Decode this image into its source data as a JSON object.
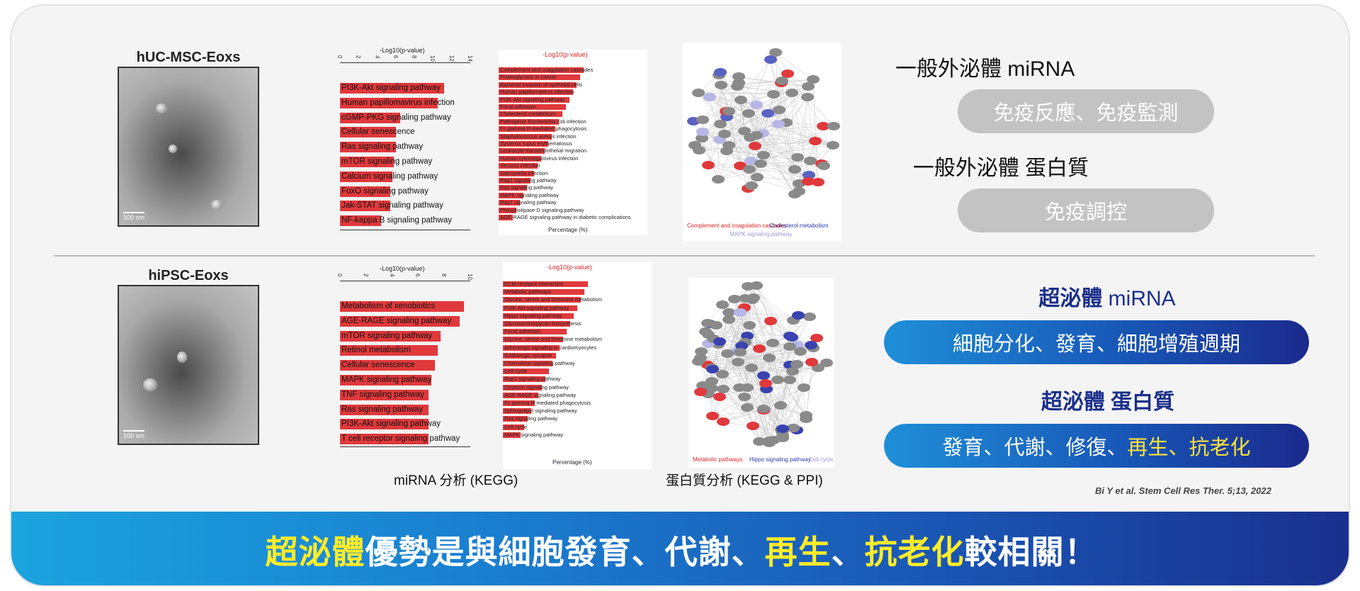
{
  "top_row": {
    "em_label": "hUC-MSC-Eoxs",
    "scale_label": "100 nm",
    "kegg_axis_title": "-Log10(p-value)",
    "kegg_ticks": [
      "0",
      "2",
      "4",
      "6",
      "8",
      "10",
      "12",
      "14"
    ],
    "kegg_pathways": [
      {
        "label": "PI3K-Akt signaling pathway",
        "value": 11.2
      },
      {
        "label": "Human papillomavirus infection",
        "value": 10.5
      },
      {
        "label": "cGMP-PKG signaling pathway",
        "value": 6.5
      },
      {
        "label": "Cellular senescence",
        "value": 6.0
      },
      {
        "label": "Ras signaling pathway",
        "value": 6.0
      },
      {
        "label": "mTOR signaling pathway",
        "value": 5.8
      },
      {
        "label": "Calcium signaling pathway",
        "value": 5.6
      },
      {
        "label": "FoxO signaling pathway",
        "value": 5.4
      },
      {
        "label": "Jak-STAT signaling pathway",
        "value": 5.4
      },
      {
        "label": "NF-kappa B signaling pathway",
        "value": 4.4
      }
    ],
    "protein_axis_title": "-Log10(p-value)",
    "protein_xlabel": "Percentage (%)",
    "protein_pathways": [
      "Complement and coagulation cascades",
      "Proteoglycans in cancer",
      "Bacterial invasion of epithelial cells",
      "Human papillomavirus infection",
      "PI3K-Akt signaling pathway",
      "Focal adhesion",
      "Cholesterol metabolism",
      "Pathogenic Escherichia coli infection",
      "Fc gamma R-mediated phagocytosis",
      "Staphylococcus aureus infection",
      "Systemic lupus erythematosus",
      "Leukocyte transendothelial migration",
      "Human cytomegalovirus infection",
      "Yersinia infection",
      "Salmonella infection",
      "Rap1 signaling pathway",
      "Ras signaling pathway",
      "MAPK signaling pathway",
      "Rap1 signaling pathway",
      "Phospholipase D signaling pathway",
      "AGE-RAGE signaling pathway in diabetic complications"
    ],
    "network_legend": [
      "Complement and coagulation cascades",
      "Cholesterol metabolism",
      "MAPK signaling pathway"
    ],
    "mirna_title": "一般外泌體 miRNA",
    "mirna_pill": "免疫反應、免疫監測",
    "protein_title": "一般外泌體 蛋白質",
    "protein_pill": "免疫調控"
  },
  "bottom_row": {
    "em_label": "hiPSC-Eoxs",
    "scale_label": "100 nm",
    "kegg_axis_title": "-Log10(p-value)",
    "kegg_ticks": [
      "0",
      "2",
      "4",
      "6",
      "8",
      "10"
    ],
    "kegg_pathways": [
      {
        "label": "Metabolism of xenobiotics",
        "value": 9.5
      },
      {
        "label": "AGE-RAGE signaling pathway",
        "value": 9.2
      },
      {
        "label": "mTOR signaling pathway",
        "value": 7.7
      },
      {
        "label": "Retinol metabolism",
        "value": 7.5
      },
      {
        "label": "Cellular senescence",
        "value": 7.3
      },
      {
        "label": "MAPK signaling pathway",
        "value": 7.0
      },
      {
        "label": "TNF signaling pathway",
        "value": 6.8
      },
      {
        "label": "Ras signaling pathway",
        "value": 6.8
      },
      {
        "label": "PI3K-Akt signaling pathway",
        "value": 6.8
      },
      {
        "label": "T cell receptor signaling pathway",
        "value": 6.8
      }
    ],
    "protein_axis_title": "-Log10(p-value)",
    "protein_xlabel": "Percentage (%)",
    "protein_pathways": [
      "ECM-receptor interaction",
      "Metabolic pathways",
      "Glycine, serine and threonine metabolism",
      "PI3K-Akt signaling pathway",
      "Hippo signaling pathway",
      "Glycosaminoglycan biosynthesis",
      "Focal adhesion",
      "Glycine, serine and threonine metabolism",
      "Adrenergic signaling in cardiomyocytes",
      "GABAergic synapse",
      "Chemokine signaling pathway",
      "Cell cycle",
      "Rap1 signaling pathway",
      "Oxytocin signaling pathway",
      "AGE-RAGE signaling pathway",
      "Fc gamma R-mediated phagocytosis",
      "Sphingolipid signaling pathway",
      "Ras signaling pathway",
      "Cell cycle",
      "MAPK signaling pathway"
    ],
    "network_legend": [
      "Metabolic pathways",
      "Hippo signaling pathway",
      "Cell cycle"
    ],
    "mirna_title_a": "超泌體",
    "mirna_title_b": "miRNA",
    "mirna_pill": "細胞分化、發育、細胞增殖週期",
    "protein_title": "超泌體 蛋白質",
    "protein_pill_a": "發育、代謝、修復、",
    "protein_pill_b": "再生、抗老化"
  },
  "captions": {
    "mirna": "miRNA 分析 (KEGG)",
    "protein": "蛋白質分析 (KEGG & PPI)"
  },
  "citation": "Bi Y et al. Stem Cell Res Ther. 5;13, 2022",
  "banner": {
    "part1": "超泌體",
    "part2": " 優勢是與細胞發育、代謝、",
    "part3": "再生",
    "part4": "、",
    "part5": "抗老化",
    "part6": "較相關！"
  },
  "colors": {
    "bar_red": "#e0393c",
    "pill_grey": "#c3c3c3",
    "banner_start": "#1ba4de",
    "banner_end": "#1a2f8e",
    "highlight_yellow": "#ffec2a",
    "title_navy": "#1a2f8a"
  }
}
